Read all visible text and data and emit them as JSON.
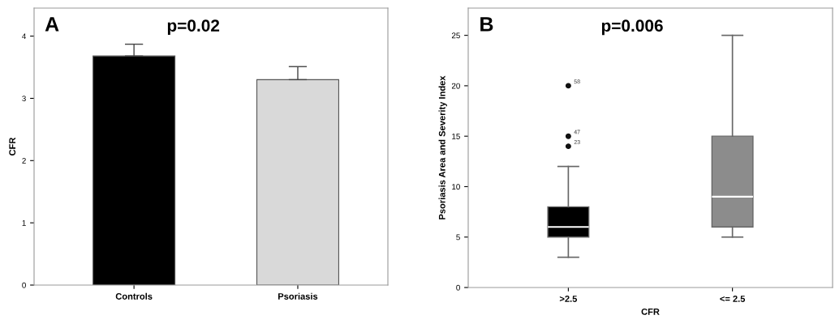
{
  "chart_data": [
    {
      "type": "bar",
      "ylabel": "CFR",
      "categories": [
        "Controls",
        "Psoriasis"
      ],
      "series": [
        {
          "values": [
            3.68,
            3.3
          ],
          "colors": [
            "#000000",
            "#d9d9d9"
          ],
          "errors": [
            [
              3.68,
              3.87
            ],
            [
              3.3,
              3.51
            ]
          ]
        }
      ],
      "ylim": [
        0,
        4.45
      ],
      "yticks": [
        0,
        1,
        2,
        3,
        4
      ],
      "grid": false,
      "annotations": [
        "A",
        "p=0.02"
      ]
    },
    {
      "type": "box",
      "xlabel": "CFR",
      "ylabel": "Psoriasis Area and Severity Index",
      "categories": [
        ">2.5",
        "<= 2.5"
      ],
      "series": [
        {
          "colors": [
            "#000000",
            "#8c8c8c"
          ],
          "boxes": [
            {
              "low": 3,
              "q1": 5,
              "median": 6,
              "q3": 8,
              "high": 12,
              "outliers": [
                20,
                15,
                14
              ]
            },
            {
              "low": 5,
              "q1": 6,
              "median": 9,
              "q3": 15,
              "high": 25
            }
          ]
        }
      ],
      "ylim": [
        0,
        27.7
      ],
      "yticks": [
        0,
        5,
        10,
        15,
        20,
        25
      ],
      "grid": false,
      "annotations": [
        "B",
        "p=0.006",
        "58",
        "47",
        "23"
      ]
    }
  ]
}
